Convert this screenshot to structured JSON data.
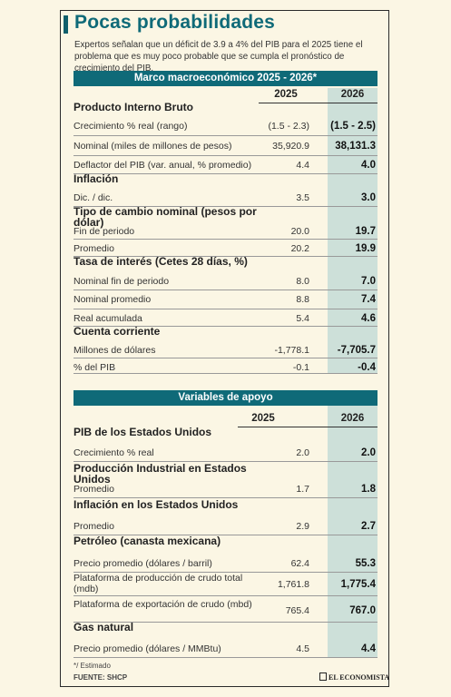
{
  "title": "Pocas probabilidades",
  "subtitle": "Expertos señalan que un déficit de 3.9 a 4% del PIB para el 2025 tiene el problema que es muy poco probable que se cumpla el pronóstico de crecimiento del PIB.",
  "section1": {
    "header": "Marco macroeconómico 2025 - 2026*",
    "year1": "2025",
    "year2": "2026",
    "rows": [
      {
        "type": "cat",
        "label": "Producto Interno Bruto"
      },
      {
        "type": "item",
        "label": "Crecimiento % real (rango)",
        "v1": "(1.5 - 2.3)",
        "v2": "(1.5 - 2.5)"
      },
      {
        "type": "item",
        "label": "Nominal (miles de millones de pesos)",
        "v1": "35,920.9",
        "v2": "38,131.3"
      },
      {
        "type": "item",
        "label": "Deflactor del PIB (var. anual, % promedio)",
        "v1": "4.4",
        "v2": "4.0"
      },
      {
        "type": "cat",
        "label": "Inflación"
      },
      {
        "type": "item",
        "label": "Dic. / dic.",
        "v1": "3.5",
        "v2": "3.0"
      },
      {
        "type": "cat",
        "label": "Tipo de cambio nominal (pesos por dólar)"
      },
      {
        "type": "item",
        "label": "Fin de periodo",
        "v1": "20.0",
        "v2": "19.7"
      },
      {
        "type": "item",
        "label": "Promedio",
        "v1": "20.2",
        "v2": "19.9"
      },
      {
        "type": "cat",
        "label": "Tasa de interés (Cetes 28 días, %)"
      },
      {
        "type": "item",
        "label": "Nominal fin de periodo",
        "v1": "8.0",
        "v2": "7.0"
      },
      {
        "type": "item",
        "label": "Nominal promedio",
        "v1": "8.8",
        "v2": "7.4"
      },
      {
        "type": "item",
        "label": "Real acumulada",
        "v1": "5.4",
        "v2": "4.6"
      },
      {
        "type": "cat",
        "label": "Cuenta corriente"
      },
      {
        "type": "item",
        "label": "Millones de dólares",
        "v1": "-1,778.1",
        "v2": "-7,705.7"
      },
      {
        "type": "item",
        "label": "% del PIB",
        "v1": "-0.1",
        "v2": "-0.4"
      }
    ]
  },
  "section2": {
    "header": "Variables de apoyo",
    "year1": "2025",
    "year2": "2026",
    "rows": [
      {
        "type": "cat",
        "label": "PIB de los Estados Unidos"
      },
      {
        "type": "item",
        "label": "Crecimiento % real",
        "v1": "2.0",
        "v2": "2.0"
      },
      {
        "type": "cat",
        "label": "Producción Industrial en Estados Unidos"
      },
      {
        "type": "item",
        "label": "Promedio",
        "v1": "1.7",
        "v2": "1.8"
      },
      {
        "type": "cat",
        "label": "Inflación en los Estados Unidos"
      },
      {
        "type": "item",
        "label": "Promedio",
        "v1": "2.9",
        "v2": "2.7"
      },
      {
        "type": "cat",
        "label": "Petróleo (canasta mexicana)"
      },
      {
        "type": "item",
        "label": "Precio promedio (dólares / barril)",
        "v1": "62.4",
        "v2": "55.3"
      },
      {
        "type": "item",
        "label": "Plataforma de producción de crudo total (mdb)",
        "v1": "1,761.8",
        "v2": "1,775.4"
      },
      {
        "type": "item",
        "label": "Plataforma de exportación de crudo (mbd)",
        "v1": "765.4",
        "v2": "767.0"
      },
      {
        "type": "cat",
        "label": "Gas natural"
      },
      {
        "type": "item",
        "label": "Precio promedio (dólares / MMBtu)",
        "v1": "4.5",
        "v2": "4.4"
      }
    ]
  },
  "footnote": "*/ Estimado",
  "source": "FUENTE: SHCP",
  "logo": "EL ECONOMISTA",
  "colors": {
    "accent": "#0f6a78",
    "column": "#cde0d9",
    "background": "#fbf6e4"
  }
}
